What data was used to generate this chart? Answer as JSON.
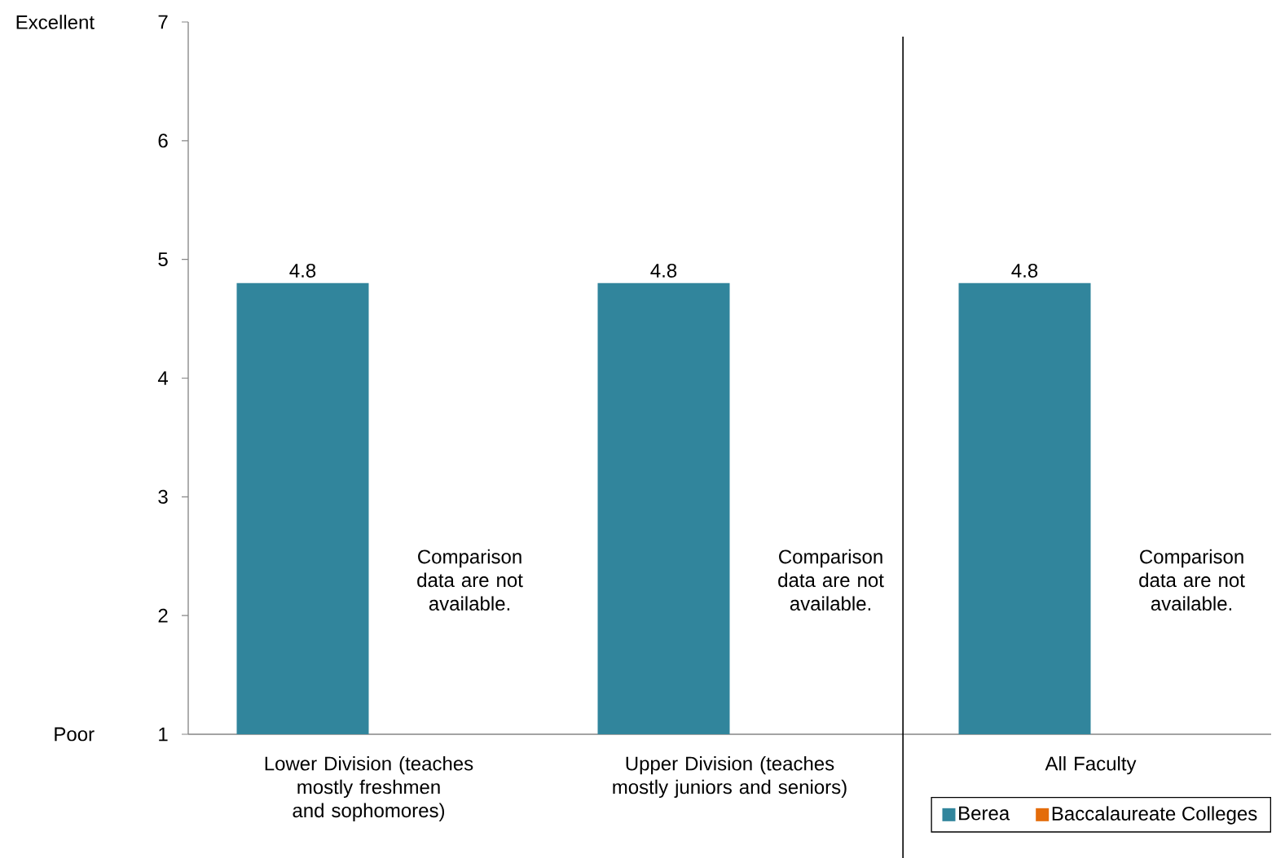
{
  "chart_data": {
    "type": "bar",
    "categories": [
      "Lower Division (teaches mostly freshmen and sophomores)",
      "Upper Division (teaches mostly juniors and seniors)",
      "All Faculty"
    ],
    "series": [
      {
        "name": "Berea",
        "color": "#31859c",
        "values": [
          4.8,
          4.8,
          4.8
        ]
      },
      {
        "name": "Baccalaureate Colleges",
        "color": "#e46c0a",
        "values": [
          null,
          null,
          null
        ]
      }
    ],
    "ylim": [
      1,
      7
    ],
    "yticks": [
      1,
      2,
      3,
      4,
      5,
      6,
      7
    ],
    "data_labels": true,
    "legend": "bottom right",
    "annotations": [
      "Excellent",
      "Poor",
      {
        "text": "Comparison data are not available.",
        "x": "Lower Division (teaches mostly freshmen and sophomores)",
        "y": 2.3
      },
      {
        "text": "Comparison data are not available.",
        "x": "Upper Division (teaches mostly juniors and seniors)",
        "y": 2.3
      },
      {
        "text": "Comparison data are not available.",
        "x": "All Faculty",
        "y": 2.3
      }
    ]
  }
}
